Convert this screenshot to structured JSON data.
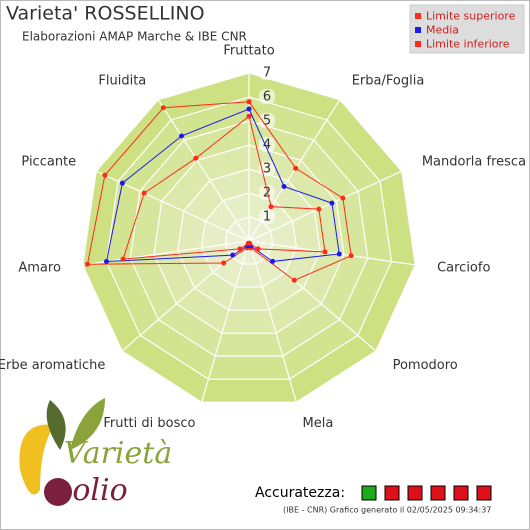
{
  "chart_data": {
    "type": "radar",
    "title": "Varieta' ROSSELLINO",
    "subtitle": "Elaborazioni AMAP Marche & IBE CNR",
    "categories": [
      "Fruttato",
      "Erba/Foglia",
      "Mandorla fresca",
      "Carciofo",
      "Pomodoro",
      "Mela",
      "Frutti di bosco",
      "Erbe aromatiche",
      "Amaro",
      "Piccante",
      "Fluidita"
    ],
    "rlim": [
      0,
      7
    ],
    "rticks": [
      1,
      2,
      3,
      4,
      5,
      6,
      7
    ],
    "series": [
      {
        "name": "Limite superiore",
        "color": "#ff2a1a",
        "values": [
          5.8,
          3.6,
          4.3,
          4.3,
          2.5,
          0.3,
          0.3,
          1.4,
          6.8,
          6.6,
          6.6
        ]
      },
      {
        "name": "Media",
        "color": "#1a1aee",
        "values": [
          5.5,
          2.7,
          3.8,
          3.8,
          1.3,
          0.2,
          0.2,
          0.9,
          6.0,
          5.8,
          5.2
        ]
      },
      {
        "name": "Limite inferiore",
        "color": "#ff2a1a",
        "values": [
          5.2,
          1.7,
          3.2,
          3.2,
          0.5,
          0.1,
          0.1,
          0.5,
          5.3,
          4.8,
          4.1
        ]
      }
    ],
    "accuracy_label": "Accuratezza:",
    "footer": "(IBE - CNR) Grafico generato il 02/05/2025 09:34:37",
    "logo": {
      "top": "Varietà",
      "bottom": "olio"
    }
  }
}
